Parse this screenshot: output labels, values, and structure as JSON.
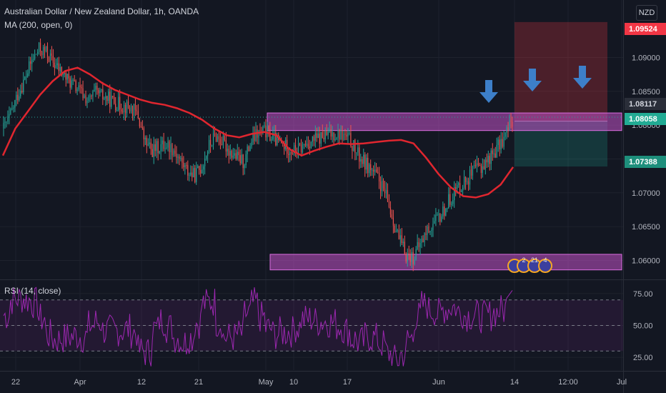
{
  "legend": {
    "symbol": "Australian Dollar / New Zealand Dollar, 1h, OANDA",
    "ma": "MA (200, open, 0)",
    "rsi": "RSI (14, close)"
  },
  "currency_badge": "NZD",
  "price_tags": {
    "stop": "1.09524",
    "current": "1.08117",
    "entry": "1.08058",
    "target": "1.07388"
  },
  "events": {
    "labels": [
      "2",
      "21",
      "4"
    ]
  },
  "colors": {
    "background": "#131722",
    "up": "#26a69a",
    "down": "#ef5350",
    "ma": "#e0262f",
    "rsi": "#9c27b0",
    "zone": "#c252c8",
    "arrow": "#3d7fc9"
  },
  "chart_data": [
    {
      "type": "candlestick",
      "title": "Australian Dollar / New Zealand Dollar, 1h, OANDA",
      "x_ticks": [
        "22",
        "Apr",
        "12",
        "21",
        "May",
        "10",
        "17",
        "Jun",
        "14",
        "12:00",
        "Jul"
      ],
      "y_ticks": [
        1.06,
        1.065,
        1.07,
        1.075,
        1.08,
        1.085,
        1.09
      ],
      "ylim": [
        1.0573,
        1.0985
      ],
      "series": [
        {
          "name": "MA (200, open, 0)",
          "type": "line",
          "values": [
            1.0755,
            1.0795,
            1.082,
            1.0845,
            1.0865,
            1.088,
            1.0885,
            1.0875,
            1.0862,
            1.0852,
            1.0845,
            1.0838,
            1.0833,
            1.083,
            1.0825,
            1.0818,
            1.0808,
            1.0795,
            1.0785,
            1.0782,
            1.0787,
            1.079,
            1.0785,
            1.0765,
            1.0755,
            1.0762,
            1.0768,
            1.0773,
            1.0772,
            1.0773,
            1.0775,
            1.0777,
            1.0778,
            1.0773,
            1.0752,
            1.0728,
            1.0708,
            1.0695,
            1.0693,
            1.0698,
            1.0712,
            1.0738
          ]
        }
      ],
      "closes": [
        1.0795,
        1.0815,
        1.0845,
        1.0868,
        1.0895,
        1.0912,
        1.0908,
        1.0893,
        1.088,
        1.0868,
        1.0858,
        1.0848,
        1.0835,
        1.0848,
        1.0842,
        1.0838,
        1.0832,
        1.0828,
        1.0825,
        1.0815,
        1.0775,
        1.0762,
        1.0768,
        1.0772,
        1.0765,
        1.0748,
        1.0732,
        1.0725,
        1.0738,
        1.0768,
        1.0785,
        1.0775,
        1.0762,
        1.0752,
        1.0745,
        1.0775,
        1.0788,
        1.0791,
        1.0782,
        1.0774,
        1.0768,
        1.0762,
        1.0765,
        1.0774,
        1.0778,
        1.0782,
        1.0786,
        1.0788,
        1.0785,
        1.0778,
        1.0758,
        1.0745,
        1.0735,
        1.072,
        1.0698,
        1.0665,
        1.063,
        1.0608,
        1.0605,
        1.0625,
        1.0645,
        1.0655,
        1.0668,
        1.0688,
        1.0705,
        1.0715,
        1.0725,
        1.0735,
        1.0742,
        1.0755,
        1.0768,
        1.0785,
        1.0808
      ],
      "zones": [
        {
          "type": "resistance",
          "y": [
            1.0792,
            1.0818
          ]
        },
        {
          "type": "support",
          "y": [
            1.0586,
            1.0609
          ]
        }
      ],
      "short_position": {
        "entry": 1.08058,
        "stop": 1.09524,
        "target": 1.07388
      },
      "annotations": [
        "down arrow",
        "down arrow",
        "down arrow"
      ]
    },
    {
      "type": "line",
      "title": "RSI (14, close)",
      "y_ticks": [
        25,
        50,
        75
      ],
      "bands": [
        30,
        50,
        70
      ],
      "ylim": [
        15,
        85
      ]
    }
  ]
}
